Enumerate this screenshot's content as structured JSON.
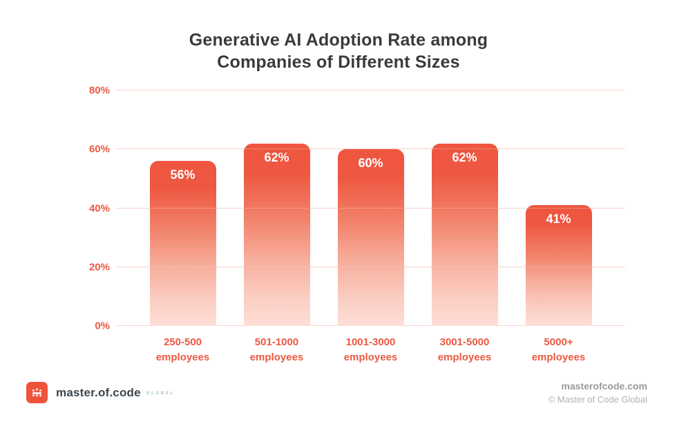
{
  "page": {
    "background": "#ffffff"
  },
  "title": {
    "text": "Generative AI Adoption Rate among Companies of Different Sizes",
    "lines": [
      "Generative AI Adoption Rate among",
      "Companies of Different Sizes"
    ],
    "color": "#3a3a3a"
  },
  "chart_data": {
    "type": "bar",
    "title": "Generative AI Adoption Rate among Companies of Different Sizes",
    "categories": [
      "250-500 employees",
      "501-1000 employees",
      "1001-3000 employees",
      "3001-5000 employees",
      "5000+ employees"
    ],
    "values": [
      56,
      62,
      60,
      62,
      41
    ],
    "value_labels": [
      "56%",
      "62%",
      "60%",
      "62%",
      "41%"
    ],
    "xlabel": "",
    "ylabel": "",
    "ylim": [
      0,
      80
    ],
    "y_ticks": [
      0,
      20,
      40,
      60,
      80
    ],
    "y_tick_labels": [
      "0%",
      "20%",
      "40%",
      "60%",
      "80%"
    ],
    "grid": true,
    "legend": "none",
    "colors": {
      "bar_top": "#ee5640",
      "bar_bottom": "#fcded6",
      "axis_labels": "#ec5840",
      "gridlines": "#f8d2c9",
      "value_label_text": "#ffffff"
    }
  },
  "footer": {
    "logo": {
      "brand": "master.of.code",
      "suffix": "GLOBAL",
      "icon_color": "#f0533c"
    },
    "website": "masterofcode.com",
    "copyright": "© Master of Code Global"
  }
}
